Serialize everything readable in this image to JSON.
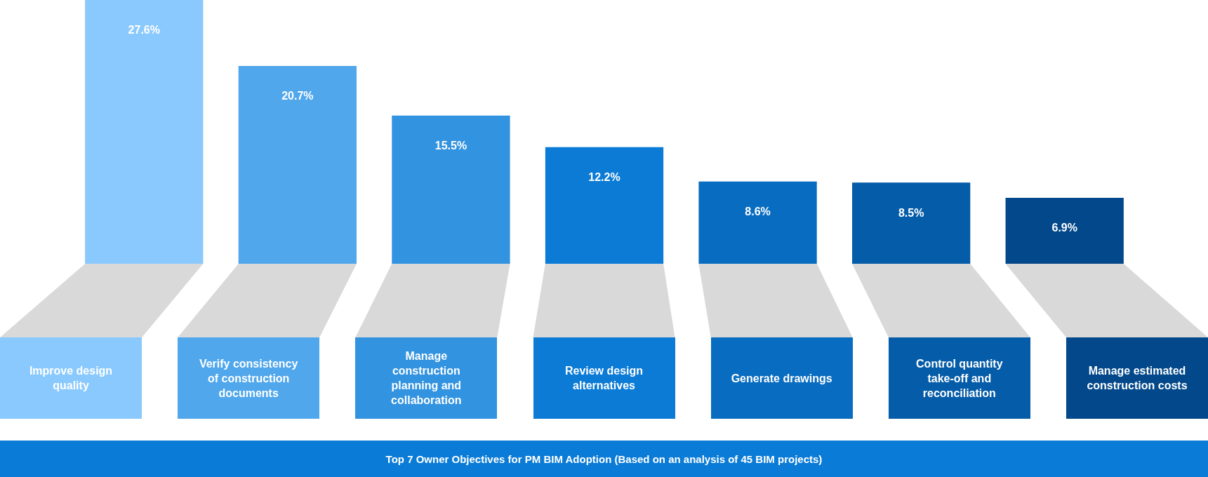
{
  "chart_data": {
    "type": "bar",
    "title": "Top 7 Owner Objectives for PM BIM Adoption (Based on an analysis of 45 BIM projects)",
    "categories": [
      "Improve design quality",
      "Verify consistency of construction documents",
      "Manage construction planning and collaboration",
      "Review design alternatives",
      "Generate drawings",
      "Control quantity take-off and reconciliation",
      "Manage estimated construction costs"
    ],
    "values": [
      27.6,
      20.7,
      15.5,
      12.2,
      8.6,
      8.5,
      6.9
    ],
    "value_labels": [
      "27.6%",
      "20.7%",
      "15.5%",
      "12.2%",
      "8.6%",
      "8.5%",
      "6.9%"
    ],
    "colors": [
      "#8ac9fd",
      "#50a7ec",
      "#3293e0",
      "#0b7bd6",
      "#086cc0",
      "#055ca8",
      "#02488a"
    ]
  }
}
